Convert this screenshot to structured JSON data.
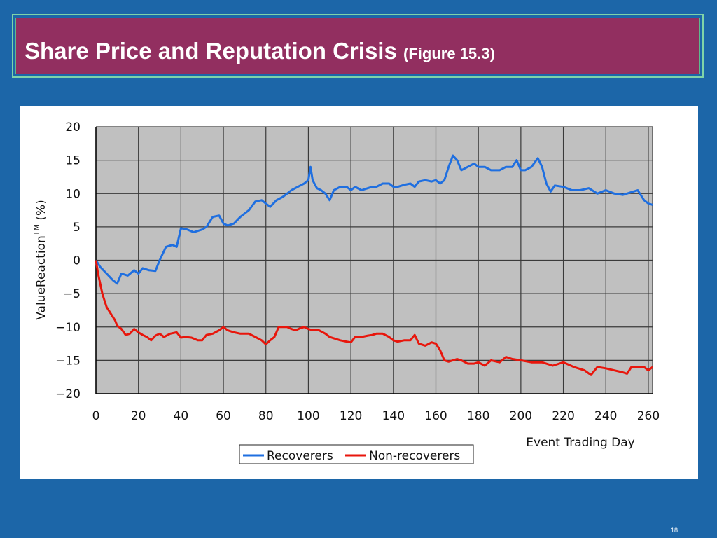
{
  "slide": {
    "title_main": "Share Price and Reputation Crisis",
    "title_sub": "(Figure 15.3)",
    "page_number": "18"
  },
  "colors": {
    "background": "#1c66a8",
    "title_bar": "#922f60",
    "plot_area": "#c0c0c0",
    "recoverers": "#1f6fe0",
    "non_recoverers": "#e8160c"
  },
  "chart_data": {
    "type": "line",
    "title": "",
    "xlabel": "Event Trading Day",
    "ylabel": "ValueReaction",
    "ylabel_superscript": "TM",
    "ylabel_unit": "(%)",
    "xlim": [
      0,
      262
    ],
    "ylim": [
      -20,
      20
    ],
    "xticks": [
      0,
      20,
      40,
      60,
      80,
      100,
      120,
      140,
      160,
      180,
      200,
      220,
      240,
      260
    ],
    "yticks": [
      -20,
      -15,
      -10,
      -5,
      0,
      5,
      10,
      15,
      20
    ],
    "ytick_labels": [
      "−20",
      "−15",
      "−10",
      "−5",
      "0",
      "5",
      "10",
      "15",
      "20"
    ],
    "grid": true,
    "legend_position": "bottom-center",
    "series": [
      {
        "name": "Recoverers",
        "color": "#1f6fe0",
        "x": [
          0,
          2,
          5,
          8,
          10,
          12,
          15,
          18,
          20,
          22,
          25,
          28,
          30,
          33,
          36,
          38,
          40,
          43,
          46,
          50,
          52,
          55,
          58,
          60,
          62,
          65,
          68,
          70,
          72,
          75,
          78,
          80,
          82,
          85,
          88,
          90,
          92,
          95,
          98,
          100,
          101,
          102,
          104,
          106,
          108,
          110,
          112,
          115,
          118,
          120,
          122,
          125,
          128,
          130,
          132,
          135,
          138,
          140,
          142,
          145,
          148,
          150,
          152,
          155,
          158,
          160,
          162,
          164,
          166,
          168,
          170,
          172,
          175,
          178,
          180,
          183,
          186,
          190,
          193,
          196,
          198,
          200,
          202,
          205,
          208,
          210,
          212,
          214,
          216,
          220,
          224,
          228,
          232,
          236,
          240,
          244,
          248,
          252,
          255,
          258,
          260,
          262
        ],
        "y": [
          0,
          -1,
          -2,
          -3,
          -3.5,
          -2,
          -2.3,
          -1.5,
          -2,
          -1.2,
          -1.5,
          -1.6,
          0,
          2,
          2.3,
          2,
          4.8,
          4.6,
          4.2,
          4.6,
          5,
          6.5,
          6.7,
          5.5,
          5.2,
          5.5,
          6.5,
          7,
          7.5,
          8.8,
          9,
          8.5,
          8,
          9,
          9.5,
          10,
          10.5,
          11,
          11.5,
          12,
          14,
          12,
          10.8,
          10.5,
          10,
          9,
          10.5,
          11,
          11,
          10.5,
          11,
          10.5,
          10.8,
          11,
          11,
          11.5,
          11.5,
          11,
          11,
          11.3,
          11.5,
          11,
          11.8,
          12,
          11.8,
          12,
          11.5,
          12,
          14,
          15.7,
          15,
          13.5,
          14,
          14.5,
          14,
          14,
          13.5,
          13.5,
          14,
          14,
          15,
          13.5,
          13.5,
          14,
          15.3,
          14,
          11.5,
          10.3,
          11.2,
          11,
          10.5,
          10.5,
          10.8,
          10,
          10.5,
          10,
          9.8,
          10.2,
          10.5,
          9,
          8.5,
          8.3
        ]
      },
      {
        "name": "Non-recoverers",
        "color": "#e8160c",
        "x": [
          0,
          1,
          2,
          3,
          4,
          5,
          7,
          9,
          10,
          12,
          14,
          16,
          18,
          20,
          22,
          24,
          26,
          28,
          30,
          32,
          35,
          38,
          40,
          42,
          45,
          48,
          50,
          52,
          55,
          58,
          60,
          62,
          65,
          68,
          70,
          72,
          75,
          78,
          80,
          82,
          84,
          86,
          88,
          90,
          92,
          94,
          96,
          98,
          100,
          102,
          105,
          108,
          110,
          112,
          115,
          118,
          120,
          122,
          125,
          128,
          130,
          132,
          135,
          138,
          140,
          142,
          145,
          148,
          150,
          152,
          155,
          158,
          160,
          162,
          164,
          166,
          168,
          170,
          172,
          175,
          178,
          180,
          183,
          186,
          190,
          193,
          196,
          200,
          205,
          210,
          215,
          220,
          225,
          230,
          233,
          236,
          240,
          244,
          248,
          250,
          252,
          255,
          258,
          260,
          262
        ],
        "y": [
          0,
          -2,
          -3.5,
          -5,
          -6,
          -7,
          -8,
          -9,
          -9.8,
          -10.3,
          -11.2,
          -11,
          -10.3,
          -10.8,
          -11.2,
          -11.5,
          -12,
          -11.3,
          -11,
          -11.5,
          -11,
          -10.8,
          -11.6,
          -11.5,
          -11.6,
          -12,
          -12,
          -11.2,
          -11,
          -10.5,
          -10,
          -10.5,
          -10.8,
          -11,
          -11,
          -11,
          -11.5,
          -12,
          -12.6,
          -12,
          -11.5,
          -10,
          -10,
          -10,
          -10.3,
          -10.5,
          -10.2,
          -10,
          -10.3,
          -10.5,
          -10.5,
          -11,
          -11.5,
          -11.7,
          -12,
          -12.2,
          -12.3,
          -11.5,
          -11.5,
          -11.3,
          -11.2,
          -11,
          -11,
          -11.5,
          -12,
          -12.2,
          -12,
          -12,
          -11.2,
          -12.5,
          -12.8,
          -12.3,
          -12.5,
          -13.5,
          -15,
          -15.2,
          -15,
          -14.8,
          -15,
          -15.5,
          -15.5,
          -15.3,
          -15.8,
          -15,
          -15.3,
          -14.5,
          -14.8,
          -15,
          -15.3,
          -15.3,
          -15.8,
          -15.3,
          -16,
          -16.5,
          -17.2,
          -16,
          -16.2,
          -16.5,
          -16.8,
          -17,
          -16,
          -16,
          -16,
          -16.5,
          -16
        ]
      }
    ]
  }
}
